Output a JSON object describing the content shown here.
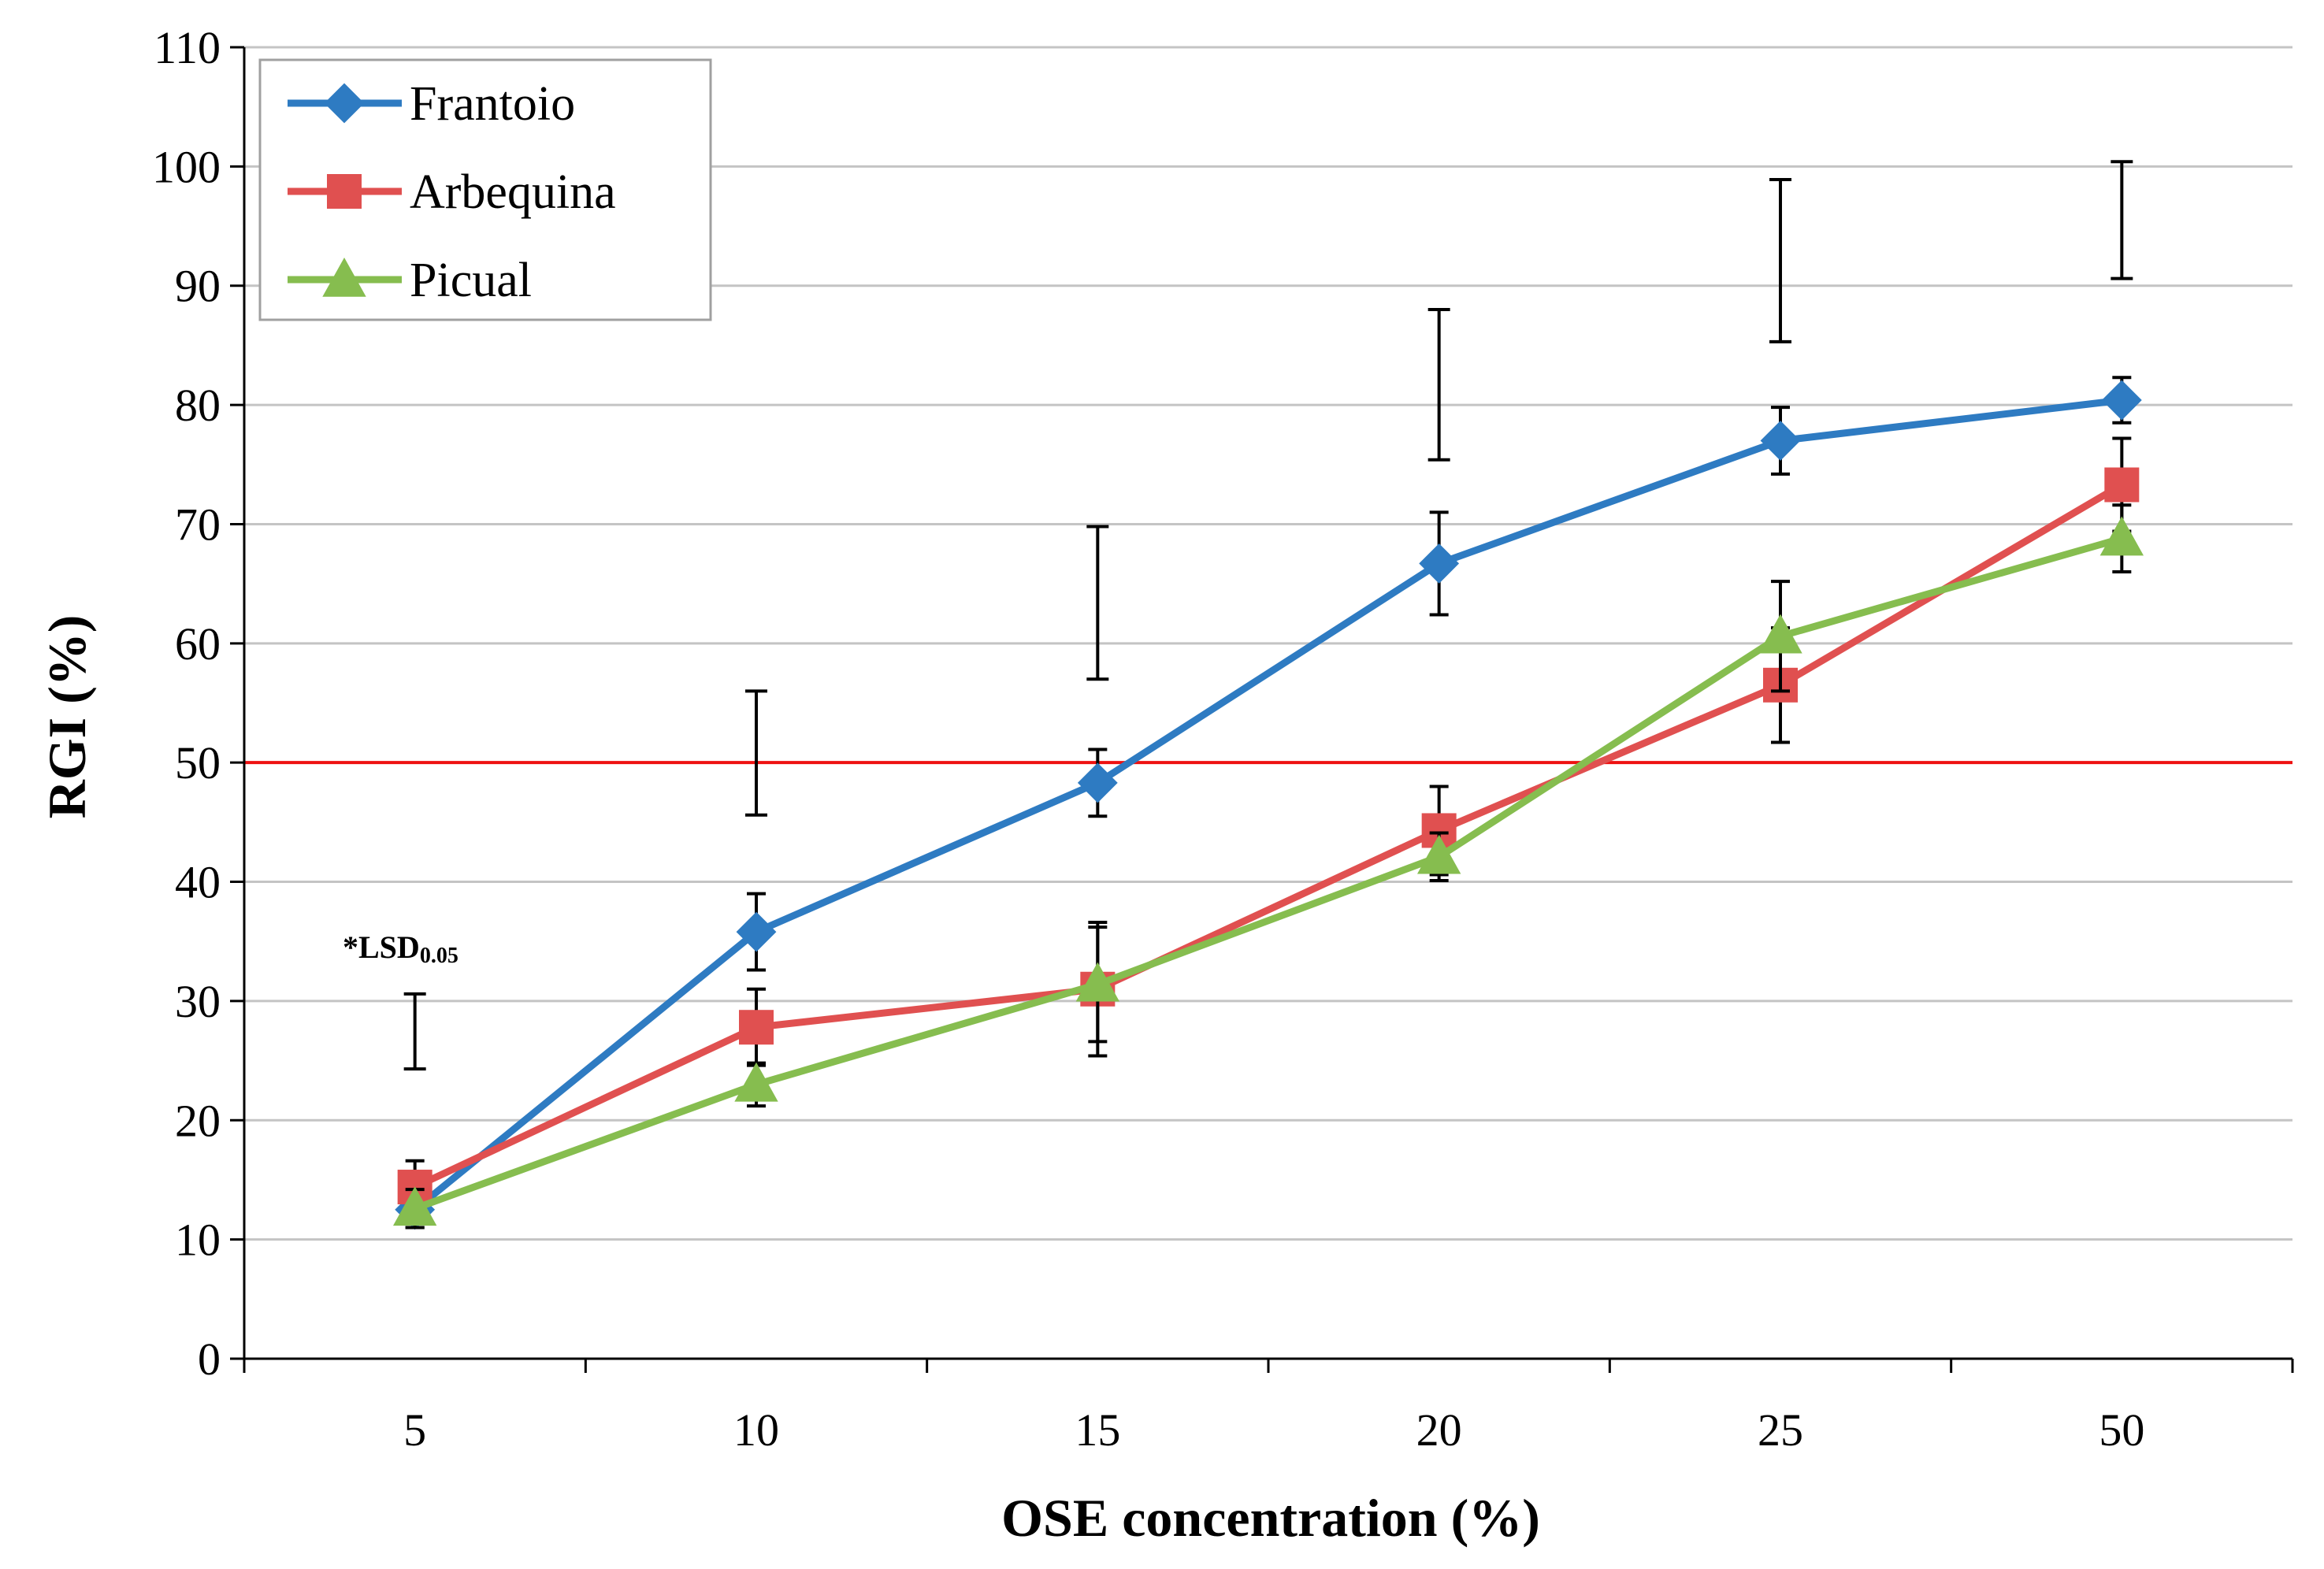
{
  "chart_data": {
    "type": "line",
    "xlabel": "OSE concentration (%)",
    "ylabel": "RGI (%)",
    "ylim": [
      0,
      110
    ],
    "yticks": [
      "0",
      "10",
      "20",
      "30",
      "40",
      "50",
      "60",
      "70",
      "80",
      "90",
      "100",
      "110"
    ],
    "categories": [
      "5",
      "10",
      "15",
      "20",
      "25",
      "50"
    ],
    "grid": "horizontal",
    "legend_position": "top-left",
    "reference_line": {
      "y": 50,
      "color": "#ee1111"
    },
    "annotation": {
      "text": "*LSD",
      "subscript": "0.05"
    },
    "series": [
      {
        "name": "Frantoio",
        "color": "#2e7bc2",
        "marker": "diamond",
        "values": [
          12.5,
          35.8,
          48.3,
          66.7,
          77.0,
          80.4
        ],
        "error": [
          1.5,
          3.2,
          2.8,
          4.3,
          2.8,
          1.9
        ]
      },
      {
        "name": "Arbequina",
        "color": "#e05050",
        "marker": "square",
        "values": [
          14.4,
          27.8,
          31.0,
          44.3,
          56.5,
          73.3
        ],
        "error": [
          2.2,
          3.2,
          5.6,
          3.7,
          4.8,
          3.9
        ]
      },
      {
        "name": "Picual",
        "color": "#86bd4f",
        "marker": "triangle",
        "values": [
          12.6,
          23.0,
          31.4,
          42.1,
          60.6,
          68.8
        ],
        "error": [
          1.6,
          1.8,
          4.8,
          2.0,
          4.6,
          2.8
        ]
      }
    ],
    "lsd_bars": [
      {
        "low": 24.3,
        "high": 30.6
      },
      {
        "low": 45.6,
        "high": 56.0
      },
      {
        "low": 57.0,
        "high": 69.8
      },
      {
        "low": 75.4,
        "high": 88.0
      },
      {
        "low": 85.3,
        "high": 98.9
      },
      {
        "low": 90.6,
        "high": 100.4
      }
    ]
  }
}
